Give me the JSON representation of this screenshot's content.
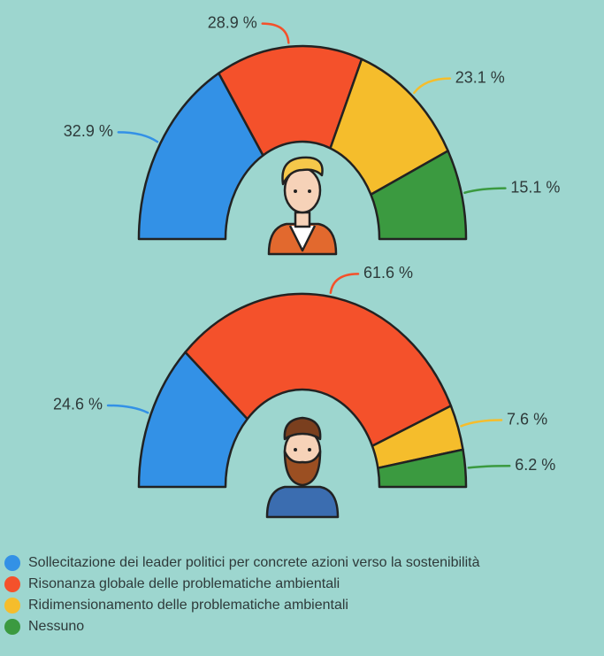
{
  "chart_data": {
    "type": "pie",
    "categories": [
      "Sollecitazione dei leader politici per concrete azioni verso la sostenibilità",
      "Risonanza globale delle problematiche ambientali",
      "Ridimensionamento delle problematiche ambientali",
      "Nessuno"
    ],
    "colors": [
      "#3391e6",
      "#f4512b",
      "#f5bd2c",
      "#3b9a40"
    ],
    "series": [
      {
        "values": [
          32.9,
          28.9,
          23.1,
          15.1
        ],
        "value_labels": [
          "32.9 %",
          "28.9 %",
          "23.1 %",
          "15.1 %"
        ]
      },
      {
        "values": [
          24.6,
          61.6,
          7.6,
          6.2
        ],
        "value_labels": [
          "24.6 %",
          "61.6 %",
          "7.6 %",
          "6.2 %"
        ]
      }
    ]
  }
}
